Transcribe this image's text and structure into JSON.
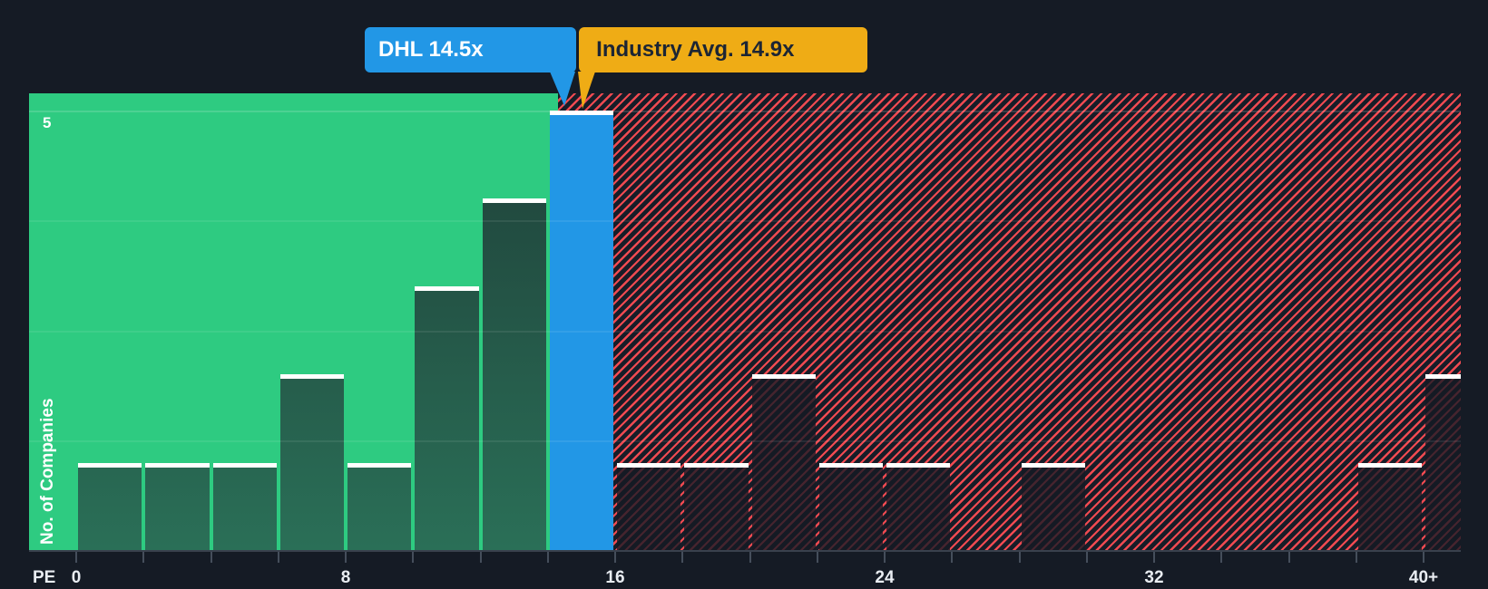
{
  "colors": {
    "background": "#151b25",
    "zone_green": "#2ecb81",
    "green_bar_top": "#1f4039",
    "green_bar_bottom": "#2a6f57",
    "hatch_background": "#171d28",
    "hatch_stripe": "#f04a51",
    "red_bar_overlay": "rgba(20,26,36,0.78)",
    "highlight_blue": "#2297e6",
    "callout_gold": "#efac15",
    "callout_gold_text": "#1c2534",
    "white_cap": "#ffffff",
    "axis": "#454e5b",
    "text": "#e9edf2"
  },
  "callouts": {
    "company": {
      "label": "DHL 14.5x"
    },
    "industry": {
      "label": "Industry Avg. 14.9x"
    }
  },
  "chart_data": {
    "type": "bar",
    "subtype": "histogram",
    "title": "",
    "xlabel": "PE",
    "ylabel": "No. of Companies",
    "ylim": [
      0,
      5
    ],
    "y_tick_labels": [
      "5"
    ],
    "grid": "4 horizontal divisions (0 to 5)",
    "legend": "none",
    "categories": [
      "0-2",
      "2-4",
      "4-6",
      "6-8",
      "8-10",
      "10-12",
      "12-14",
      "14-16",
      "16-18",
      "18-20",
      "20-22",
      "22-24",
      "24-26",
      "26-28",
      "28-30",
      "30-32",
      "32-34",
      "34-36",
      "36-38",
      "38-40",
      "40+"
    ],
    "values": [
      1,
      1,
      1,
      2,
      1,
      3,
      4,
      5,
      1,
      1,
      2,
      1,
      1,
      0,
      1,
      0,
      0,
      0,
      0,
      1,
      2
    ],
    "highlight_category": "14-16",
    "x_tick_labels": [
      {
        "pe": 0,
        "label": "0"
      },
      {
        "pe": 8,
        "label": "8"
      },
      {
        "pe": 16,
        "label": "16"
      },
      {
        "pe": 24,
        "label": "24"
      },
      {
        "pe": 32,
        "label": "32"
      },
      {
        "pe": 40,
        "label": "40+"
      }
    ],
    "markers": {
      "company": {
        "name": "DHL",
        "pe": 14.5
      },
      "industry_avg": {
        "pe": 14.9
      }
    },
    "zones": [
      {
        "pe_range": [
          0,
          14.9
        ],
        "style": "solid-green"
      },
      {
        "pe_range": [
          14.9,
          42
        ],
        "style": "red-hatched"
      }
    ]
  }
}
